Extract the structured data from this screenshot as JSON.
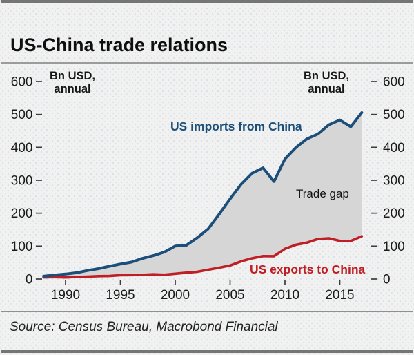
{
  "header": {
    "title": "US-China trade relations"
  },
  "footer": {
    "source": "Source: Census Bureau, Macrobond Financial"
  },
  "chart_data": {
    "type": "line",
    "title": "US-China trade relations",
    "y_axis_label": {
      "line1": "Bn USD,",
      "line2": "annual"
    },
    "x": [
      1988,
      1989,
      1990,
      1991,
      1992,
      1993,
      1994,
      1995,
      1996,
      1997,
      1998,
      1999,
      2000,
      2001,
      2002,
      2003,
      2004,
      2005,
      2006,
      2007,
      2008,
      2009,
      2010,
      2011,
      2012,
      2013,
      2014,
      2015,
      2016,
      2017
    ],
    "series": [
      {
        "name": "US imports from China",
        "color": "#1b4e79",
        "values": [
          8.5,
          11.9,
          15.2,
          19.0,
          25.7,
          31.5,
          38.8,
          45.6,
          51.5,
          62.6,
          71.2,
          81.8,
          100.0,
          102.3,
          125.2,
          152.4,
          196.7,
          243.5,
          287.8,
          321.4,
          337.8,
          296.4,
          364.9,
          399.4,
          425.6,
          440.4,
          468.5,
          483.2,
          462.5,
          505.5
        ]
      },
      {
        "name": "US exports to China",
        "color": "#bf1e24",
        "values": [
          5.0,
          5.8,
          4.8,
          6.3,
          7.4,
          8.8,
          9.3,
          11.7,
          12.0,
          12.8,
          14.2,
          13.1,
          16.2,
          19.2,
          22.1,
          28.4,
          34.4,
          41.2,
          53.7,
          62.9,
          69.7,
          69.5,
          91.9,
          104.1,
          110.5,
          121.7,
          123.7,
          115.9,
          115.6,
          129.9
        ]
      }
    ],
    "area_between": {
      "label": "Trade gap",
      "fill": "#d6d6d6"
    },
    "x_ticks": [
      1990,
      1995,
      2000,
      2005,
      2010,
      2015
    ],
    "y_ticks": [
      0,
      100,
      200,
      300,
      400,
      500,
      600
    ],
    "xlim": [
      1988,
      2017
    ],
    "ylim": [
      0,
      620
    ],
    "grid": false,
    "legend": "inline-annotations",
    "tick_color": "#3c3c3c",
    "tick_label_color": "#1a1a1a"
  }
}
